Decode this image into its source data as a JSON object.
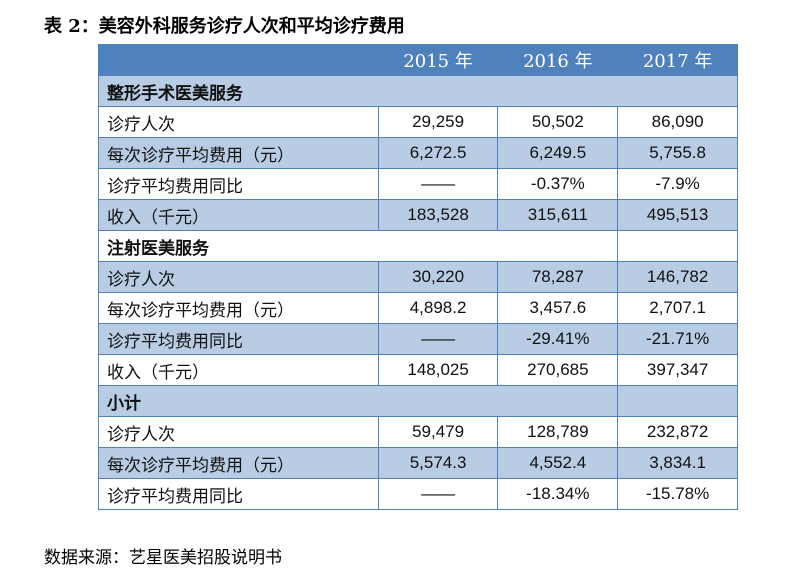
{
  "title": "表 2：美容外科服务诊疗人次和平均诊疗费用",
  "years": [
    "2015 年",
    "2016 年",
    "2017 年"
  ],
  "sections": [
    {
      "name": "整形手术医美服务",
      "rows": [
        {
          "label": "诊疗人次",
          "values": [
            "29,259",
            "50,502",
            "86,090"
          ]
        },
        {
          "label": "每次诊疗平均费用（元）",
          "values": [
            "6,272.5",
            "6,249.5",
            "5,755.8"
          ]
        },
        {
          "label": "诊疗平均费用同比",
          "values": [
            "——",
            "-0.37%",
            "-7.9%"
          ]
        },
        {
          "label": "收入（千元）",
          "values": [
            "183,528",
            "315,611",
            "495,513"
          ]
        }
      ]
    },
    {
      "name": "注射医美服务",
      "rows": [
        {
          "label": "诊疗人次",
          "values": [
            "30,220",
            "78,287",
            "146,782"
          ]
        },
        {
          "label": "每次诊疗平均费用（元）",
          "values": [
            "4,898.2",
            "3,457.6",
            "2,707.1"
          ]
        },
        {
          "label": "诊疗平均费用同比",
          "values": [
            "——",
            "-29.41%",
            "-21.71%"
          ]
        },
        {
          "label": "收入（千元）",
          "values": [
            "148,025",
            "270,685",
            "397,347"
          ]
        }
      ]
    },
    {
      "name": "小计",
      "rows": [
        {
          "label": "诊疗人次",
          "values": [
            "59,479",
            "128,789",
            "232,872"
          ]
        },
        {
          "label": "每次诊疗平均费用（元）",
          "values": [
            "5,574.3",
            "4,552.4",
            "3,834.1"
          ]
        },
        {
          "label": "诊疗平均费用同比",
          "values": [
            "——",
            "-18.34%",
            "-15.78%"
          ]
        }
      ]
    }
  ],
  "source": "数据来源：艺星医美招股说明书",
  "colors": {
    "header": "#4f81bd",
    "band": "#b8cce4"
  }
}
